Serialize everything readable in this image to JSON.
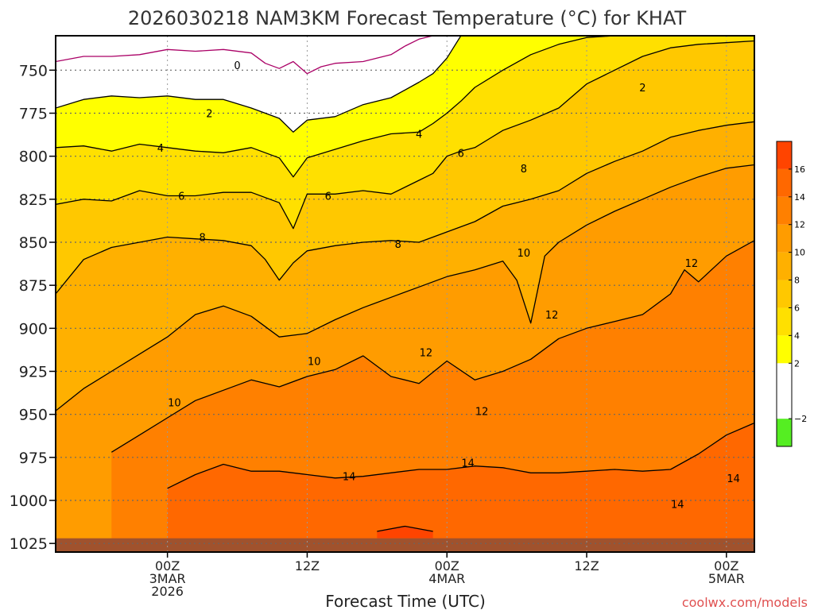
{
  "chart_data": {
    "type": "heatmap",
    "title": "2026030218 NAM3KM Forecast Temperature (°C) for KHAT",
    "xlabel": "Forecast Time (UTC)",
    "ylabel": "",
    "credit": "coolwx.com/models",
    "y_axis": {
      "unit": "hPa",
      "range": [
        730,
        1030
      ],
      "ticks": [
        750,
        775,
        800,
        825,
        850,
        875,
        900,
        925,
        950,
        975,
        1000,
        1025
      ]
    },
    "x_axis": {
      "unit": "forecast hours from 2026-03-02 18Z",
      "range": [
        -2,
        48
      ],
      "ticks": [
        {
          "hour": 6,
          "lines": [
            "00Z",
            "3MAR",
            "2026"
          ]
        },
        {
          "hour": 16,
          "lines": [
            "12Z"
          ]
        },
        {
          "hour": 26,
          "lines": [
            "00Z",
            "4MAR"
          ]
        },
        {
          "hour": 36,
          "lines": [
            "12Z"
          ]
        },
        {
          "hour": 46,
          "lines": [
            "00Z",
            "5MAR"
          ]
        }
      ]
    },
    "contours": [
      {
        "level": 0,
        "color": "#aa0066",
        "points": [
          [
            -2,
            745
          ],
          [
            0,
            742
          ],
          [
            2,
            742
          ],
          [
            4,
            741
          ],
          [
            6,
            738
          ],
          [
            8,
            739
          ],
          [
            10,
            738
          ],
          [
            12,
            740
          ],
          [
            13,
            746
          ],
          [
            14,
            749
          ],
          [
            15,
            745
          ],
          [
            16,
            752
          ],
          [
            17,
            748
          ],
          [
            18,
            746
          ],
          [
            20,
            745
          ],
          [
            22,
            741
          ],
          [
            23,
            736
          ],
          [
            24,
            732
          ],
          [
            25,
            730
          ]
        ]
      },
      {
        "level": 2,
        "color": "#000000",
        "points": [
          [
            -2,
            772
          ],
          [
            0,
            767
          ],
          [
            2,
            765
          ],
          [
            4,
            766
          ],
          [
            6,
            765
          ],
          [
            8,
            767
          ],
          [
            10,
            767
          ],
          [
            12,
            772
          ],
          [
            14,
            778
          ],
          [
            15,
            786
          ],
          [
            16,
            779
          ],
          [
            18,
            777
          ],
          [
            20,
            770
          ],
          [
            22,
            766
          ],
          [
            24,
            757
          ],
          [
            25,
            752
          ],
          [
            26,
            743
          ],
          [
            27,
            730
          ]
        ]
      },
      {
        "level": 4,
        "color": "#000000",
        "points": [
          [
            -2,
            795
          ],
          [
            0,
            794
          ],
          [
            2,
            797
          ],
          [
            4,
            793
          ],
          [
            6,
            795
          ],
          [
            8,
            797
          ],
          [
            10,
            798
          ],
          [
            12,
            795
          ],
          [
            14,
            801
          ],
          [
            15,
            812
          ],
          [
            16,
            801
          ],
          [
            18,
            796
          ],
          [
            20,
            791
          ],
          [
            22,
            787
          ],
          [
            24,
            786
          ],
          [
            25,
            781
          ],
          [
            26,
            775
          ],
          [
            27,
            768
          ],
          [
            28,
            760
          ],
          [
            30,
            750
          ],
          [
            32,
            741
          ],
          [
            34,
            735
          ],
          [
            36,
            731
          ],
          [
            38,
            730
          ]
        ]
      },
      {
        "level": 6,
        "color": "#000000",
        "points": [
          [
            -2,
            828
          ],
          [
            0,
            825
          ],
          [
            2,
            826
          ],
          [
            4,
            820
          ],
          [
            6,
            823
          ],
          [
            8,
            823
          ],
          [
            10,
            821
          ],
          [
            12,
            821
          ],
          [
            14,
            827
          ],
          [
            15,
            842
          ],
          [
            16,
            822
          ],
          [
            18,
            822
          ],
          [
            20,
            820
          ],
          [
            22,
            822
          ],
          [
            24,
            814
          ],
          [
            25,
            810
          ],
          [
            26,
            800
          ],
          [
            27,
            797
          ],
          [
            28,
            795
          ],
          [
            29,
            790
          ],
          [
            30,
            785
          ],
          [
            32,
            779
          ],
          [
            34,
            772
          ],
          [
            36,
            758
          ],
          [
            38,
            750
          ],
          [
            40,
            742
          ],
          [
            42,
            737
          ],
          [
            44,
            735
          ],
          [
            46,
            734
          ],
          [
            48,
            733
          ]
        ]
      },
      {
        "level": 8,
        "color": "#000000",
        "points": [
          [
            -2,
            880
          ],
          [
            -1,
            870
          ],
          [
            0,
            860
          ],
          [
            2,
            853
          ],
          [
            4,
            850
          ],
          [
            6,
            847
          ],
          [
            8,
            848
          ],
          [
            10,
            849
          ],
          [
            12,
            852
          ],
          [
            13,
            860
          ],
          [
            14,
            872
          ],
          [
            15,
            862
          ],
          [
            16,
            855
          ],
          [
            18,
            852
          ],
          [
            20,
            850
          ],
          [
            22,
            849
          ],
          [
            24,
            850
          ],
          [
            26,
            844
          ],
          [
            28,
            838
          ],
          [
            30,
            829
          ],
          [
            32,
            825
          ],
          [
            34,
            820
          ],
          [
            36,
            810
          ],
          [
            38,
            803
          ],
          [
            40,
            797
          ],
          [
            42,
            789
          ],
          [
            44,
            785
          ],
          [
            46,
            782
          ],
          [
            48,
            780
          ]
        ]
      },
      {
        "level": 10,
        "color": "#000000",
        "points": [
          [
            -2,
            948
          ],
          [
            0,
            935
          ],
          [
            2,
            925
          ],
          [
            4,
            915
          ],
          [
            6,
            905
          ],
          [
            8,
            892
          ],
          [
            10,
            887
          ],
          [
            12,
            893
          ],
          [
            14,
            905
          ],
          [
            16,
            903
          ],
          [
            18,
            895
          ],
          [
            20,
            888
          ],
          [
            22,
            882
          ],
          [
            24,
            876
          ],
          [
            26,
            870
          ],
          [
            28,
            866
          ],
          [
            30,
            861
          ],
          [
            31,
            872
          ],
          [
            32,
            897
          ],
          [
            33,
            858
          ],
          [
            34,
            850
          ],
          [
            36,
            840
          ],
          [
            38,
            832
          ],
          [
            40,
            825
          ],
          [
            42,
            818
          ],
          [
            44,
            812
          ],
          [
            46,
            807
          ],
          [
            48,
            805
          ]
        ]
      },
      {
        "level": 12,
        "color": "#000000",
        "points": [
          [
            2,
            972
          ],
          [
            4,
            962
          ],
          [
            6,
            952
          ],
          [
            8,
            942
          ],
          [
            10,
            936
          ],
          [
            12,
            930
          ],
          [
            14,
            934
          ],
          [
            16,
            928
          ],
          [
            18,
            924
          ],
          [
            20,
            916
          ],
          [
            22,
            928
          ],
          [
            24,
            932
          ],
          [
            26,
            919
          ],
          [
            28,
            930
          ],
          [
            30,
            925
          ],
          [
            32,
            918
          ],
          [
            34,
            906
          ],
          [
            36,
            900
          ],
          [
            38,
            896
          ],
          [
            40,
            892
          ],
          [
            42,
            880
          ],
          [
            43,
            866
          ],
          [
            44,
            873
          ],
          [
            46,
            858
          ],
          [
            48,
            849
          ]
        ]
      },
      {
        "level": 14,
        "color": "#000000",
        "points": [
          [
            6,
            993
          ],
          [
            8,
            985
          ],
          [
            10,
            979
          ],
          [
            12,
            983
          ],
          [
            14,
            983
          ],
          [
            16,
            985
          ],
          [
            18,
            987
          ],
          [
            20,
            986
          ],
          [
            22,
            984
          ],
          [
            24,
            982
          ],
          [
            26,
            982
          ],
          [
            28,
            980
          ],
          [
            30,
            981
          ],
          [
            32,
            984
          ],
          [
            34,
            984
          ],
          [
            36,
            983
          ],
          [
            38,
            982
          ],
          [
            40,
            983
          ],
          [
            42,
            982
          ],
          [
            44,
            973
          ],
          [
            46,
            962
          ],
          [
            48,
            955
          ]
        ]
      },
      {
        "level": 16,
        "color": "#000000",
        "points": [
          [
            21,
            1018
          ],
          [
            23,
            1015
          ],
          [
            25,
            1018
          ]
        ]
      }
    ],
    "contour_labels": [
      {
        "text": "0",
        "hour": 11.0,
        "hpa": 747
      },
      {
        "text": "2",
        "hour": 9.0,
        "hpa": 775
      },
      {
        "text": "2",
        "hour": 40.0,
        "hpa": 760
      },
      {
        "text": "4",
        "hour": 5.5,
        "hpa": 795
      },
      {
        "text": "4",
        "hour": 24.0,
        "hpa": 787
      },
      {
        "text": "6",
        "hour": 7.0,
        "hpa": 823
      },
      {
        "text": "6",
        "hour": 17.5,
        "hpa": 823
      },
      {
        "text": "6",
        "hour": 27.0,
        "hpa": 798
      },
      {
        "text": "8",
        "hour": 8.5,
        "hpa": 847
      },
      {
        "text": "8",
        "hour": 22.5,
        "hpa": 851
      },
      {
        "text": "8",
        "hour": 31.5,
        "hpa": 807
      },
      {
        "text": "10",
        "hour": 6.5,
        "hpa": 943
      },
      {
        "text": "10",
        "hour": 16.5,
        "hpa": 919
      },
      {
        "text": "10",
        "hour": 31.5,
        "hpa": 856
      },
      {
        "text": "12",
        "hour": 24.5,
        "hpa": 914
      },
      {
        "text": "12",
        "hour": 28.5,
        "hpa": 948
      },
      {
        "text": "12",
        "hour": 33.5,
        "hpa": 892
      },
      {
        "text": "12",
        "hour": 43.5,
        "hpa": 862
      },
      {
        "text": "14",
        "hour": 19.0,
        "hpa": 986
      },
      {
        "text": "14",
        "hour": 27.5,
        "hpa": 978
      },
      {
        "text": "14",
        "hour": 42.5,
        "hpa": 1002
      },
      {
        "text": "14",
        "hour": 46.5,
        "hpa": 987
      }
    ],
    "ground": {
      "top_hpa": 1022,
      "color": "#a0522d"
    },
    "colorbar": {
      "bands": [
        {
          "from": -4,
          "to": -2,
          "color": "#55ee22"
        },
        {
          "from": -2,
          "to": 2,
          "color": "#ffffff"
        },
        {
          "from": 2,
          "to": 4,
          "color": "#ffff00"
        },
        {
          "from": 4,
          "to": 6,
          "color": "#ffe000"
        },
        {
          "from": 6,
          "to": 8,
          "color": "#ffc800"
        },
        {
          "from": 8,
          "to": 10,
          "color": "#ffb000"
        },
        {
          "from": 10,
          "to": 12,
          "color": "#ff9c00"
        },
        {
          "from": 12,
          "to": 14,
          "color": "#ff8000"
        },
        {
          "from": 14,
          "to": 16,
          "color": "#ff6800"
        },
        {
          "from": 16,
          "to": 18,
          "color": "#ff4400"
        }
      ],
      "tick_labels": [
        "−2",
        "2",
        "4",
        "6",
        "8",
        "10",
        "12",
        "14",
        "16"
      ],
      "tick_values": [
        -2,
        2,
        4,
        6,
        8,
        10,
        12,
        14,
        16
      ]
    },
    "colors": {
      "title": "#333333",
      "axis_text": "#222222",
      "grid": "#666666",
      "credit": "#e05050"
    }
  }
}
